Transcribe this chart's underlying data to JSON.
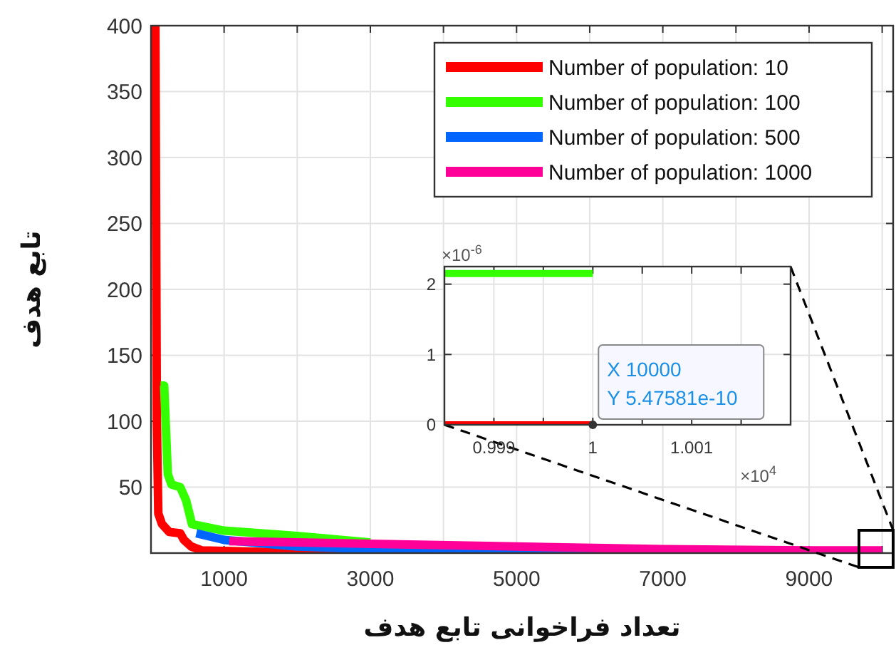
{
  "chart_data": [
    {
      "type": "line",
      "xlabel": "تعداد فراخوانی تابع هدف",
      "ylabel": "تابع هدف",
      "xlim": [
        0,
        10150
      ],
      "ylim": [
        0,
        400
      ],
      "xticks": [
        1000,
        {
          "value": 2000,
          "label": null
        },
        3000,
        {
          "value": 4000,
          "label": null
        },
        5000,
        {
          "value": 6000,
          "label": null
        },
        7000,
        {
          "value": 8000,
          "label": null
        },
        9000,
        {
          "value": 10000,
          "label": null
        }
      ],
      "yticks": [
        50,
        100,
        150,
        200,
        250,
        300,
        350,
        400
      ],
      "grid": true,
      "legend": "top right",
      "series": [
        {
          "name": "Number of population: 10",
          "color": "#ff0000",
          "x": [
            60,
            80,
            100,
            150,
            250,
            400,
            450,
            550,
            700,
            1500,
            3000
          ],
          "values": [
            400,
            100,
            30,
            22,
            16,
            15,
            10,
            5,
            2,
            1,
            0
          ]
        },
        {
          "name": "Number of population: 100",
          "color": "#33ff00",
          "x": [
            130,
            180,
            230,
            280,
            400,
            480,
            560,
            1000,
            2000,
            3000
          ],
          "values": [
            127,
            127,
            60,
            52,
            50,
            40,
            22,
            17,
            13,
            8
          ]
        },
        {
          "name": "Number of population: 500",
          "color": "#0066ff",
          "x": [
            620,
            1000,
            2000,
            3000,
            4000,
            6000,
            10000
          ],
          "values": [
            15,
            10,
            5,
            3,
            2,
            1,
            0
          ]
        },
        {
          "name": "Number of population: 1000",
          "color": "#ff0099",
          "x": [
            1070,
            3000,
            5000,
            7000,
            9000,
            10000
          ],
          "values": [
            9,
            7,
            5,
            3,
            2,
            2
          ]
        }
      ]
    },
    {
      "type": "line",
      "xlim": [
        0.9985,
        1.002
      ],
      "ylim": [
        0,
        2.25
      ],
      "xticks": [
        0.999,
        {
          "value": 0.9995,
          "label": null
        },
        1,
        {
          "value": 1.0005,
          "label": null
        },
        1.001,
        {
          "value": 1.0015,
          "label": null
        }
      ],
      "yticks": [
        0,
        1,
        2
      ],
      "grid": true,
      "annotations": [
        "×10$^{-6}$",
        "×10$^{4}$",
        {
          "text": "X 10000",
          "x": 1,
          "y": 0
        },
        {
          "text": "Y 5.47581e-10",
          "x": 1,
          "y": 0
        }
      ],
      "series": [
        {
          "color": "#ff0000",
          "x": [
            0.9985,
            1
          ],
          "values": [
            0,
            0
          ]
        },
        {
          "color": "#33ff00",
          "x": [
            0.9985,
            1
          ],
          "values": [
            2.15,
            2.15
          ]
        }
      ]
    }
  ]
}
